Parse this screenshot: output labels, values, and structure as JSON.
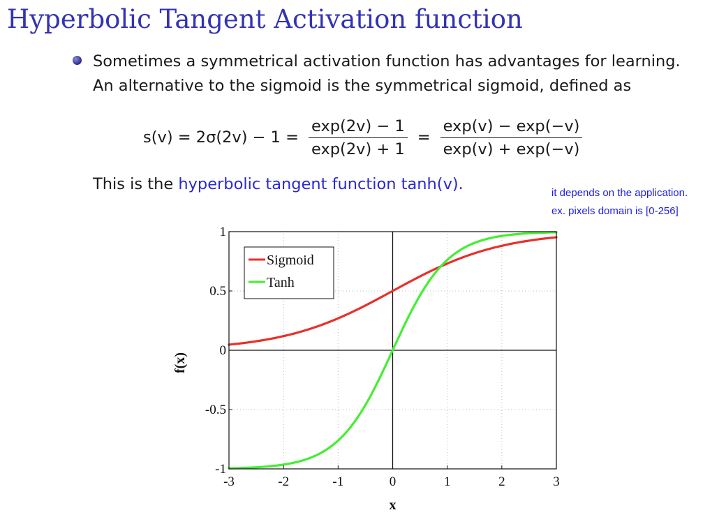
{
  "slide": {
    "title": "Hyperbolic Tangent Activation function",
    "bullet_line1": "Sometimes a symmetrical activation function has advantages for learning.",
    "bullet_line2": "An alternative to the sigmoid is the symmetrical sigmoid, defined as",
    "formula": {
      "lhs": "s(v) = 2σ(2v) − 1 =",
      "frac1_num": "exp(2v) − 1",
      "frac1_den": "exp(2v) + 1",
      "equals": "=",
      "frac2_num": "exp(v) − exp(−v)",
      "frac2_den": "exp(v) + exp(−v)"
    },
    "tanh_prefix": "This is the ",
    "tanh_highlight": "hyperbolic tangent function tanh(v).",
    "note_line1": "it depends on the application.",
    "note_line2": "ex. pixels domain is [0-256]",
    "colors": {
      "title": "#3333b3",
      "highlight": "#2a2ad0",
      "note": "#2020e0"
    }
  },
  "chart_data": {
    "type": "line",
    "xlabel": "x",
    "ylabel": "f(x)",
    "xlim": [
      -3,
      3
    ],
    "ylim": [
      -1,
      1
    ],
    "xticks": [
      -3,
      -2,
      -1,
      0,
      1,
      2,
      3
    ],
    "yticks": [
      1,
      0.5,
      0,
      -0.5,
      -1
    ],
    "grid": "dotted",
    "legend_position": "top-left",
    "x": [
      -3,
      -2.5,
      -2,
      -1.5,
      -1,
      -0.5,
      0,
      0.5,
      1,
      1.5,
      2,
      2.5,
      3
    ],
    "series": [
      {
        "name": "Sigmoid",
        "color": "#e8302a",
        "values": [
          0.047,
          0.076,
          0.119,
          0.182,
          0.269,
          0.378,
          0.5,
          0.622,
          0.731,
          0.818,
          0.881,
          0.924,
          0.953
        ]
      },
      {
        "name": "Tanh",
        "color": "#44ee33",
        "values": [
          -0.995,
          -0.987,
          -0.964,
          -0.905,
          -0.762,
          -0.462,
          0,
          0.462,
          0.762,
          0.905,
          0.964,
          0.987,
          0.995
        ]
      }
    ]
  }
}
